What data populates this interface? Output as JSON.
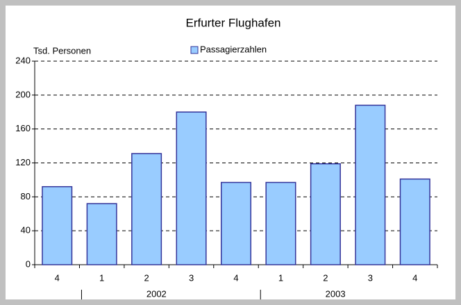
{
  "chart_data": {
    "type": "bar",
    "title": "Erfurter Flughafen",
    "y_label": "Tsd. Personen",
    "categories": [
      "4",
      "1",
      "2",
      "3",
      "4",
      "1",
      "2",
      "3",
      "4"
    ],
    "x_groups": [
      "2002",
      "2003"
    ],
    "series": [
      {
        "name": "Passagierzahlen",
        "color": "#99ccff",
        "values": [
          92,
          72,
          131,
          180,
          97,
          97,
          119,
          188,
          101
        ]
      }
    ],
    "ylim": [
      0,
      240
    ],
    "yticks": [
      0,
      40,
      80,
      120,
      160,
      200,
      240
    ],
    "grid": true,
    "legend": "top"
  }
}
